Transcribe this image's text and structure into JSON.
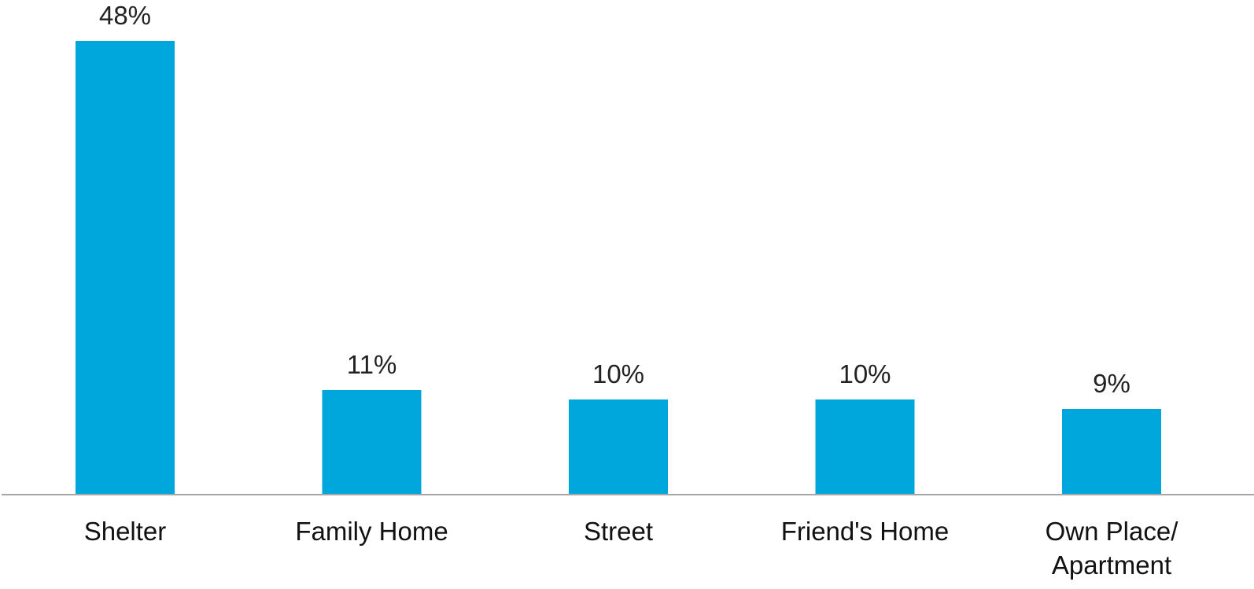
{
  "chart_data": {
    "type": "bar",
    "categories": [
      "Shelter",
      "Family Home",
      "Street",
      "Friend's Home",
      "Own Place/ Apartment"
    ],
    "category_lines": [
      [
        "Shelter"
      ],
      [
        "Family Home"
      ],
      [
        "Street"
      ],
      [
        "Friend's Home"
      ],
      [
        "Own Place/",
        "Apartment"
      ]
    ],
    "values": [
      48,
      11,
      10,
      10,
      9
    ],
    "value_labels": [
      "48%",
      "11%",
      "10%",
      "10%",
      "9%"
    ],
    "title": "",
    "xlabel": "",
    "ylabel": "",
    "ylim": [
      0,
      48
    ],
    "grid": false,
    "legend": "none",
    "colors": {
      "bar": "#00A7DC",
      "axis": "#A6A6A6"
    }
  }
}
